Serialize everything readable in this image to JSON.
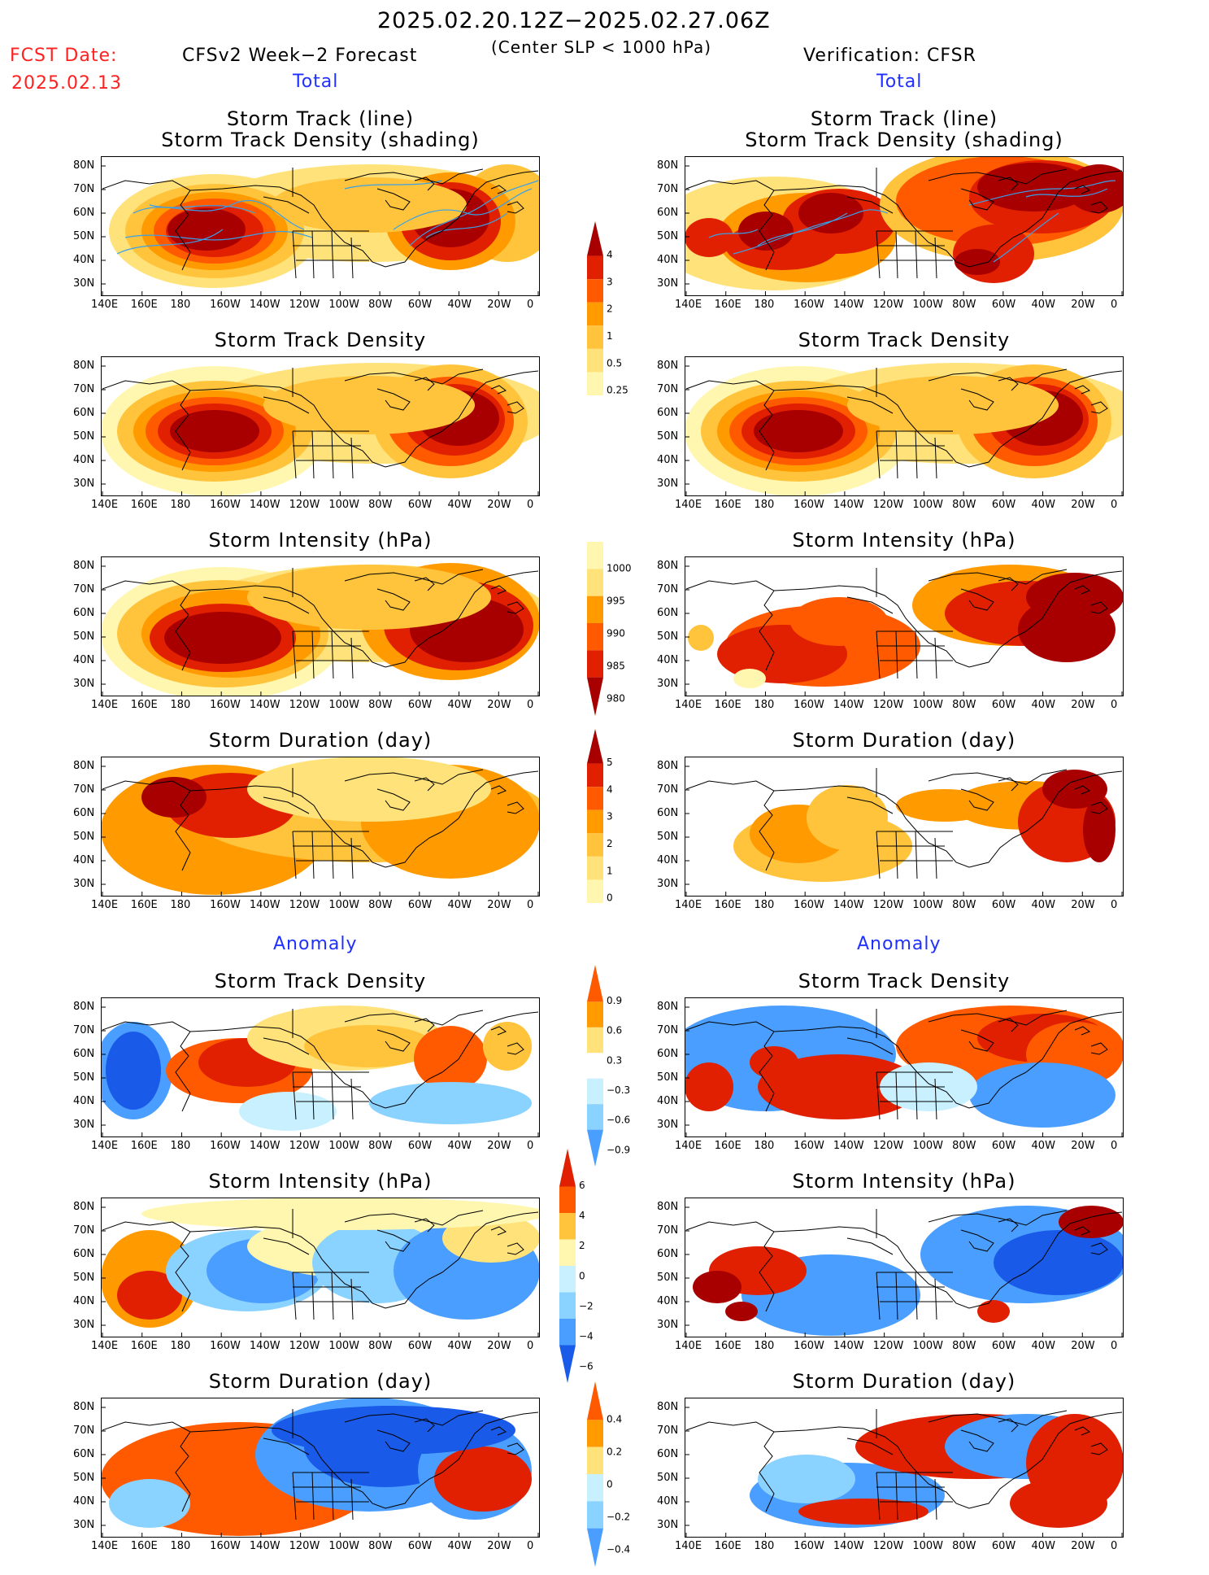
{
  "header": {
    "title": "2025.02.20.12Z−2025.02.27.06Z",
    "subtitle": "(Center SLP < 1000 hPa)",
    "fcst_label": "FCST Date:",
    "fcst_date": "2025.02.13",
    "left_title": "CFSv2 Week−2 Forecast",
    "right_title": "Verification: CFSR",
    "total_left": "Total",
    "total_right": "Total",
    "anomaly_left": "Anomaly",
    "anomaly_right": "Anomaly"
  },
  "panel_titles": {
    "track_line": "Storm Track (line)",
    "track_shading": "Storm Track Density (shading)",
    "density": "Storm Track Density",
    "intensity": "Storm Intensity (hPa)",
    "duration": "Storm Duration (day)"
  },
  "axes": {
    "lon_labels": [
      "140E",
      "160E",
      "180",
      "160W",
      "140W",
      "120W",
      "100W",
      "80W",
      "60W",
      "40W",
      "20W",
      "0"
    ],
    "lat_labels": [
      "80N",
      "70N",
      "60N",
      "50N",
      "40N",
      "30N"
    ]
  },
  "colorbars": {
    "density_total": [
      "4",
      "3",
      "2",
      "1",
      "0.5",
      "0.25"
    ],
    "intensity_total": [
      "1000",
      "995",
      "990",
      "985",
      "980"
    ],
    "duration_total": [
      "5",
      "4",
      "3",
      "2",
      "1",
      "0"
    ],
    "density_anom": [
      "0.9",
      "0.6",
      "0.3",
      "−0.3",
      "−0.6",
      "−0.9"
    ],
    "intensity_anom": [
      "6",
      "4",
      "2",
      "0",
      "−2",
      "−4",
      "−6"
    ],
    "duration_anom": [
      "0.4",
      "0.2",
      "0",
      "−0.2",
      "−0.4"
    ]
  },
  "colors": {
    "warm": [
      "#fff7b0",
      "#ffe27a",
      "#ffc43c",
      "#ff9a00",
      "#ff5a00",
      "#e02000",
      "#a80000"
    ],
    "cool": [
      "#c8f0ff",
      "#8ad2ff",
      "#4a9eff",
      "#1a5ae8"
    ],
    "track_line": "#3aa0e8",
    "coast": "#000000"
  }
}
